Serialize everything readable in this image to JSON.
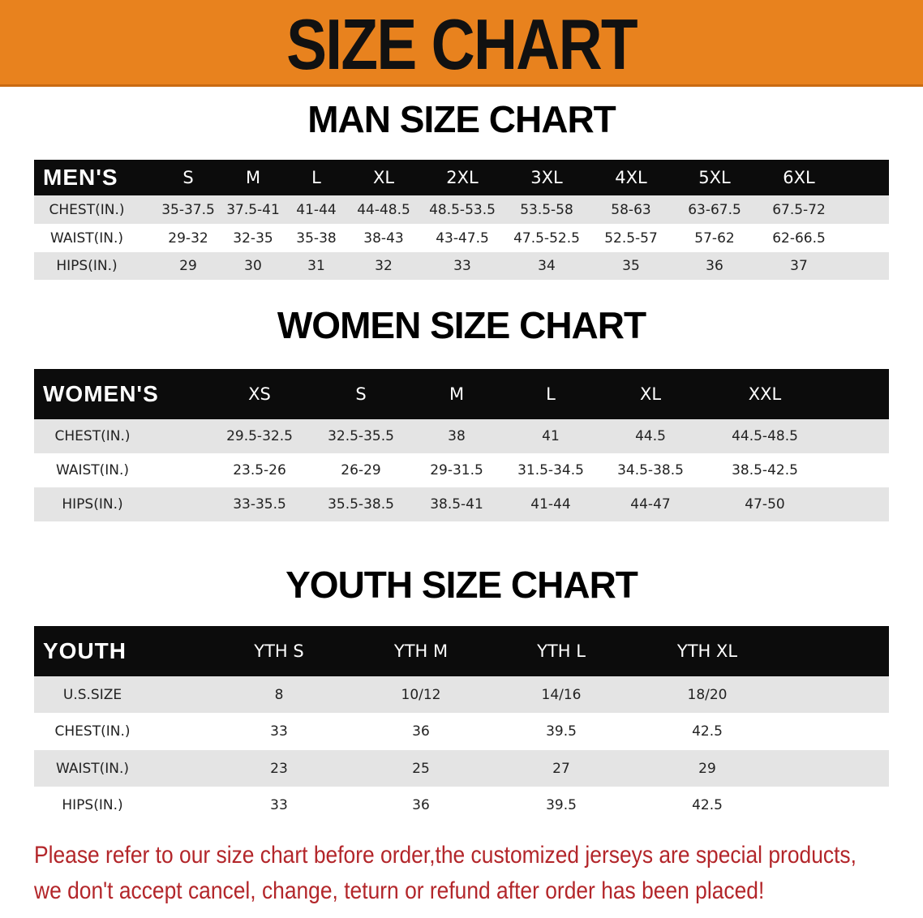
{
  "banner_title": "SIZE CHART",
  "colors": {
    "banner": "#e8821e",
    "header_bg": "#0c0c0c",
    "row_alt": "#e4e4e4",
    "note": "#b3262a"
  },
  "men": {
    "title": "MAN SIZE CHART",
    "header": [
      "MEN'S",
      "S",
      "M",
      "L",
      "XL",
      "2XL",
      "3XL",
      "4XL",
      "5XL",
      "6XL"
    ],
    "rows": [
      [
        "CHEST(IN.)",
        "35-37.5",
        "37.5-41",
        "41-44",
        "44-48.5",
        "48.5-53.5",
        "53.5-58",
        "58-63",
        "63-67.5",
        "67.5-72"
      ],
      [
        "WAIST(IN.)",
        "29-32",
        "32-35",
        "35-38",
        "38-43",
        "43-47.5",
        "47.5-52.5",
        "52.5-57",
        "57-62",
        "62-66.5"
      ],
      [
        "HIPS(IN.)",
        "29",
        "30",
        "31",
        "32",
        "33",
        "34",
        "35",
        "36",
        "37"
      ]
    ]
  },
  "women": {
    "title": "WOMEN SIZE CHART",
    "header": [
      "WOMEN'S",
      "XS",
      "S",
      "M",
      "L",
      "XL",
      "XXL"
    ],
    "rows": [
      [
        "CHEST(IN.)",
        "29.5-32.5",
        "32.5-35.5",
        "38",
        "41",
        "44.5",
        "44.5-48.5"
      ],
      [
        "WAIST(IN.)",
        "23.5-26",
        "26-29",
        "29-31.5",
        "31.5-34.5",
        "34.5-38.5",
        "38.5-42.5"
      ],
      [
        "HIPS(IN.)",
        "33-35.5",
        "35.5-38.5",
        "38.5-41",
        "41-44",
        "44-47",
        "47-50"
      ]
    ]
  },
  "youth": {
    "title": "YOUTH SIZE CHART",
    "header": [
      "YOUTH",
      "YTH S",
      "YTH M",
      "YTH L",
      "YTH XL"
    ],
    "rows": [
      [
        "U.S.SIZE",
        "8",
        "10/12",
        "14/16",
        "18/20"
      ],
      [
        "CHEST(IN.)",
        "33",
        "36",
        "39.5",
        "42.5"
      ],
      [
        "WAIST(IN.)",
        "23",
        "25",
        "27",
        "29"
      ],
      [
        "HIPS(IN.)",
        "33",
        "36",
        "39.5",
        "42.5"
      ]
    ]
  },
  "note": {
    "line1": "Please refer to our size chart before order,the customized jerseys are special products,",
    "line2": "we don't accept cancel, change, teturn or refund after order has been placed!"
  }
}
